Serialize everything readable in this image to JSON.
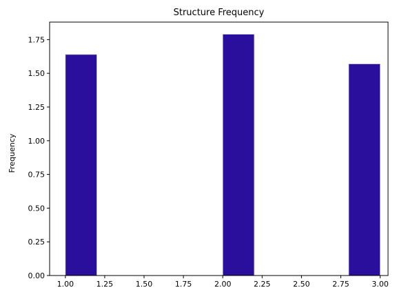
{
  "chart_data": {
    "type": "bar",
    "title": "Structure Frequency",
    "xlabel": "",
    "ylabel": "Frequency",
    "xlim": [
      0.9,
      3.05
    ],
    "ylim": [
      0,
      1.88
    ],
    "bar_color": "#2a0f9c",
    "bar_edge_color": "#d0d0d0",
    "bins": [
      {
        "x0": 1.0,
        "x1": 1.2,
        "value": 1.64
      },
      {
        "x0": 2.0,
        "x1": 2.2,
        "value": 1.79
      },
      {
        "x0": 2.8,
        "x1": 3.0,
        "value": 1.57
      }
    ],
    "xticks": [
      1.0,
      1.25,
      1.5,
      1.75,
      2.0,
      2.25,
      2.5,
      2.75,
      3.0
    ],
    "xtick_labels": [
      "1.00",
      "1.25",
      "1.50",
      "1.75",
      "2.00",
      "2.25",
      "2.50",
      "2.75",
      "3.00"
    ],
    "yticks": [
      0,
      0.25,
      0.5,
      0.75,
      1.0,
      1.25,
      1.5,
      1.75
    ],
    "ytick_labels": [
      "0.00",
      "0.25",
      "0.50",
      "0.75",
      "1.00",
      "1.25",
      "1.50",
      "1.75"
    ],
    "grid": false,
    "legend": "none"
  }
}
